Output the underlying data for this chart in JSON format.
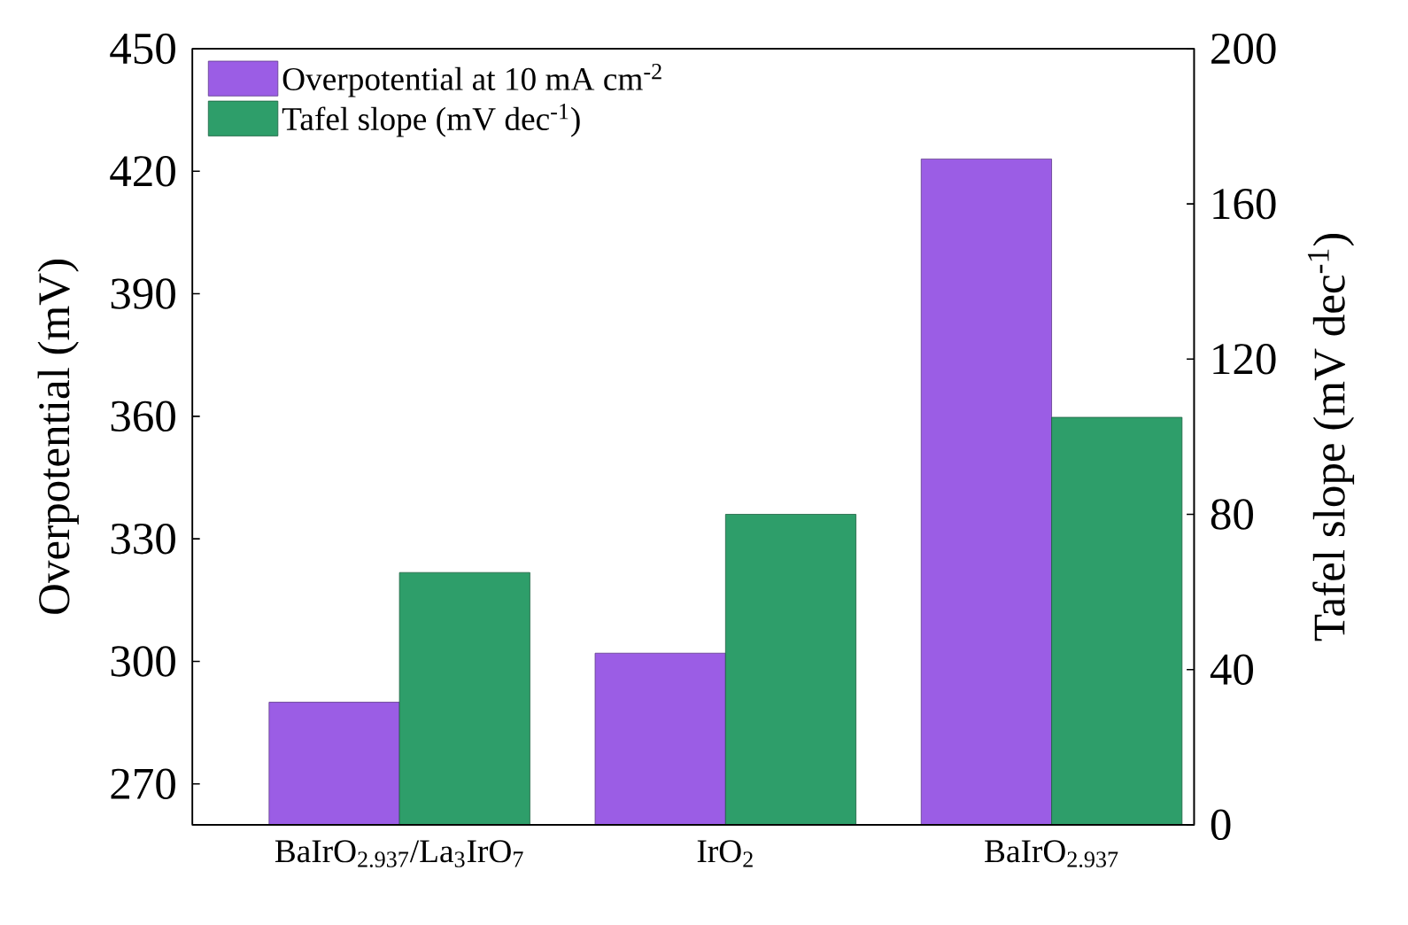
{
  "chart_data": {
    "type": "bar",
    "categories": [
      "BaIrO$_{2.937}$/La$_{3}$IrO$_{7}$",
      "IrO$_{2}$",
      "BaIrO$_{2.937}$"
    ],
    "series": [
      {
        "name": "Overpotential at 10 mA cm$^{-2}$",
        "color": "#9b5de5",
        "values": [
          290,
          302,
          423
        ]
      },
      {
        "name": "Tafel slope (mV dec$^{-1}$)",
        "color": "#2e9e6a",
        "values": [
          65,
          80,
          105
        ],
        "axis": "y2"
      }
    ],
    "ylabel": "Overpotential (mV)",
    "y2label": "Tafel slope (mV dec$^{-1}$)",
    "ylim": [
      260,
      450
    ],
    "yticks": [
      270,
      300,
      330,
      360,
      390,
      420,
      450
    ],
    "y2lim": [
      0,
      200
    ],
    "y2ticks": [
      0,
      40,
      80,
      120,
      160,
      200
    ],
    "legend": "top left",
    "grid": false
  }
}
